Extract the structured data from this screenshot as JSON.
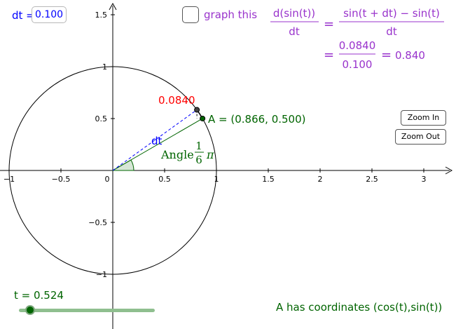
{
  "colors": {
    "axis": "#000000",
    "circle": "#000000",
    "segment_A": "#006400",
    "segment_dt": "#0000ff",
    "dy_label": "#ff0000",
    "formula": "#9933cc",
    "angle_fill": "#cce0cc"
  },
  "dt_control": {
    "label": "dt =",
    "value": "0.100"
  },
  "graph_checkbox": {
    "label": "graph this",
    "checked": false
  },
  "formula": {
    "lhs_num": "d(sin(t))",
    "lhs_den": "dt",
    "rhs_num": "sin(t + dt) − sin(t)",
    "rhs_den": "dt",
    "eq": "=",
    "val_num": "0.0840",
    "val_den": "0.100",
    "result": "0.840"
  },
  "graph": {
    "x_ticks": [
      "−1",
      "−0.5",
      "0",
      "0.5",
      "1",
      "1.5",
      "2",
      "2.5",
      "3"
    ],
    "y_ticks": [
      "1.5",
      "1",
      "0.5",
      "−0.5",
      "−1"
    ],
    "dy_label": "0.0840",
    "point_A_label": "A = (0.866, 0.500)",
    "dt_segment_label": "dt",
    "angle_text": "Angle",
    "angle_frac_num": "1",
    "angle_frac_den": "6",
    "angle_pi": "π",
    "t_value": 0.524,
    "dt_value": 0.1
  },
  "zoom": {
    "in_label": "Zoom In",
    "out_label": "Zoom Out"
  },
  "slider": {
    "label": "t = 0.524",
    "value": 0.524,
    "min": 0,
    "max": 6.283
  },
  "caption": "A has coordinates (cos(t),sin(t))"
}
